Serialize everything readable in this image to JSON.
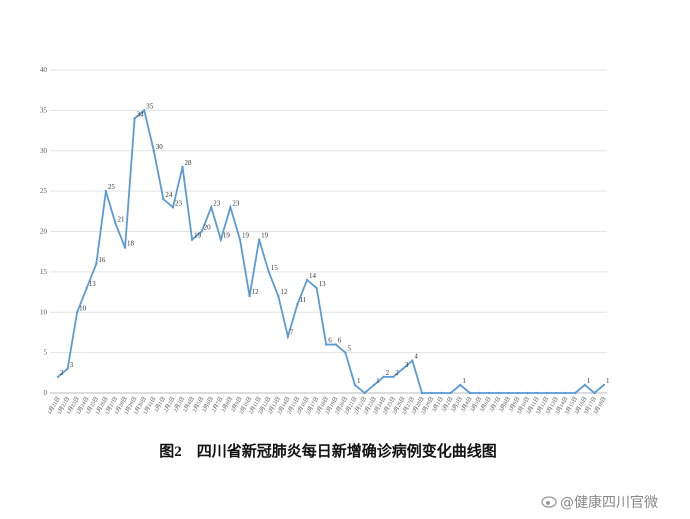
{
  "chart_data": {
    "type": "line",
    "title": "图2　四川省新冠肺炎每日新增确诊病例变化曲线图",
    "watermark": "@健康四川官微",
    "categories": [
      "1月21日",
      "1月22日",
      "1月23日",
      "1月24日",
      "1月25日",
      "1月26日",
      "1月27日",
      "1月28日",
      "1月29日",
      "1月30日",
      "1月31日",
      "2月1日",
      "2月2日",
      "2月3日",
      "2月4日",
      "2月5日",
      "2月6日",
      "2月7日",
      "2月8日",
      "2月9日",
      "2月10日",
      "2月11日",
      "2月12日",
      "2月13日",
      "2月14日",
      "2月15日",
      "2月16日",
      "2月17日",
      "2月18日",
      "2月19日",
      "2月20日",
      "2月21日",
      "2月22日",
      "2月23日",
      "2月24日",
      "2月25日",
      "2月26日",
      "2月27日",
      "2月28日",
      "2月29日",
      "3月1日",
      "3月2日",
      "3月3日",
      "3月4日",
      "3月5日",
      "3月6日",
      "3月7日",
      "3月8日",
      "3月9日",
      "3月10日",
      "3月11日",
      "3月12日",
      "3月13日",
      "3月14日",
      "3月15日",
      "3月16日",
      "3月17日",
      "3月18日"
    ],
    "series": [
      {
        "name": "每日新增确诊",
        "color": "#5b9bd5",
        "values": [
          2,
          3,
          10,
          13,
          16,
          25,
          21,
          18,
          34,
          35,
          30,
          24,
          23,
          28,
          19,
          20,
          23,
          19,
          23,
          19,
          12,
          19,
          15,
          12,
          7,
          11,
          14,
          13,
          6,
          6,
          5,
          1,
          0,
          1,
          2,
          2,
          3,
          4,
          0,
          0,
          0,
          0,
          1,
          0,
          0,
          0,
          0,
          0,
          0,
          0,
          0,
          0,
          0,
          0,
          0,
          1,
          0,
          1
        ]
      }
    ],
    "ylim": [
      0,
      40
    ],
    "yticks": [
      0,
      5,
      10,
      15,
      20,
      25,
      30,
      35,
      40
    ],
    "grid": true
  }
}
